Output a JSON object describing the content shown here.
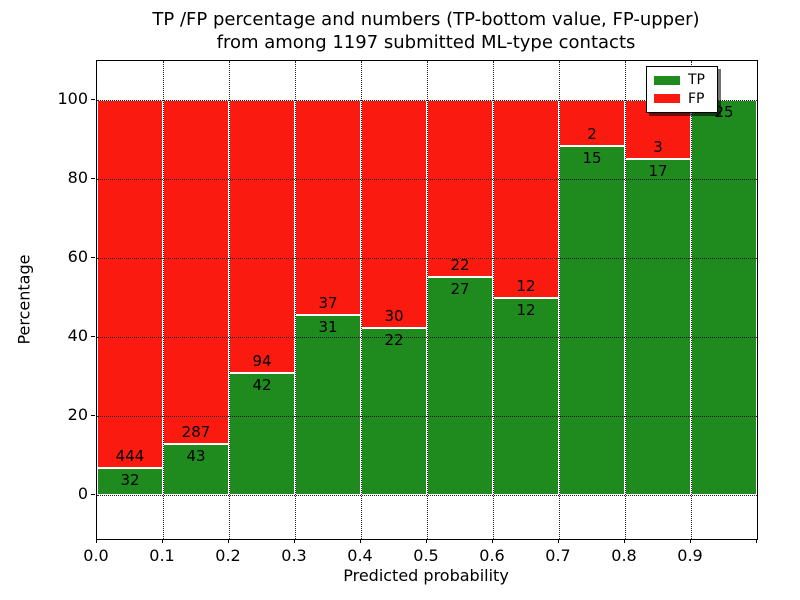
{
  "title": {
    "line1": "TP /FP percentage and numbers (TP-bottom value, FP-upper)",
    "line2": "from among 1197 submitted ML-type contacts"
  },
  "axes": {
    "xlabel": "Predicted probability",
    "ylabel": "Percentage",
    "xtick_labels": [
      "0.0",
      "0.1",
      "0.2",
      "0.3",
      "0.4",
      "0.5",
      "0.6",
      "0.7",
      "0.8",
      "0.9"
    ],
    "ytick_labels": [
      "0",
      "20",
      "40",
      "60",
      "80",
      "100"
    ],
    "ytick_values": [
      0,
      20,
      40,
      60,
      80,
      100
    ]
  },
  "legend": {
    "items": [
      {
        "label": "TP",
        "color": "#1f8b1f"
      },
      {
        "label": "FP",
        "color": "#fa1a10"
      }
    ]
  },
  "chart_data": {
    "type": "bar",
    "stacked": true,
    "normalized_to_percent": true,
    "title": "TP /FP percentage and numbers (TP-bottom value, FP-upper) from among 1197 submitted ML-type contacts",
    "xlabel": "Predicted probability",
    "ylabel": "Percentage",
    "total_contacts": 1197,
    "categories": [
      "0.0-0.1",
      "0.1-0.2",
      "0.2-0.3",
      "0.3-0.4",
      "0.4-0.5",
      "0.5-0.6",
      "0.6-0.7",
      "0.7-0.8",
      "0.8-0.9",
      "0.9-1.0"
    ],
    "series": [
      {
        "name": "TP",
        "color": "#1f8b1f",
        "position": "bottom",
        "values": [
          32,
          43,
          42,
          31,
          22,
          27,
          12,
          15,
          17,
          25
        ]
      },
      {
        "name": "FP",
        "color": "#fa1a10",
        "position": "top",
        "values": [
          444,
          287,
          94,
          37,
          30,
          22,
          12,
          2,
          3,
          0
        ]
      }
    ],
    "tp_percent": [
      6.7,
      13.0,
      30.9,
      45.6,
      42.3,
      55.1,
      50.0,
      88.2,
      85.0,
      100.0
    ],
    "xlim": [
      0.0,
      1.0
    ],
    "ylim": [
      -11,
      110
    ],
    "grid": "dotted",
    "legend_position": "upper right",
    "bar_edge_color": "#ffffff"
  }
}
